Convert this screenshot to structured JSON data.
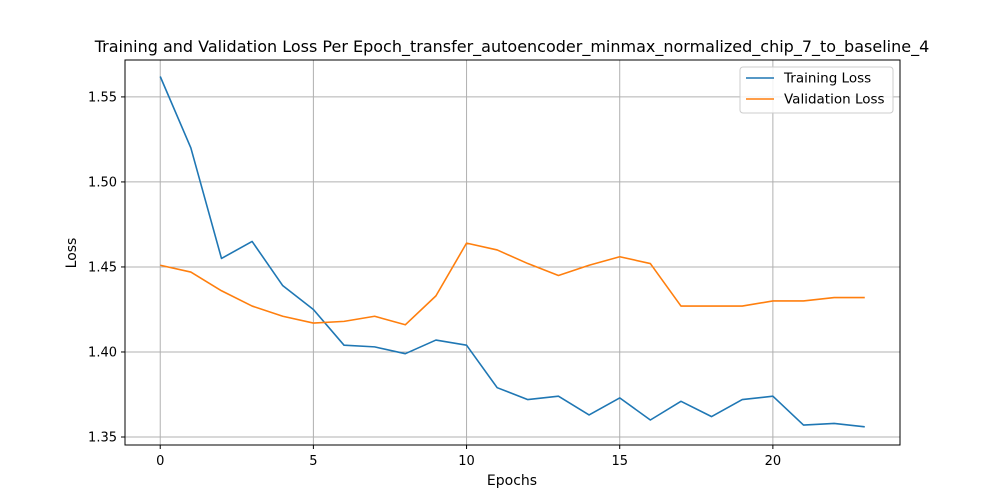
{
  "chart_data": {
    "type": "line",
    "title": "Training and Validation Loss Per Epoch_transfer_autoencoder_minmax_normalized_chip_7_to_baseline_4",
    "xlabel": "Epochs",
    "ylabel": "Loss",
    "xlim": [
      -1.15,
      24.15
    ],
    "ylim": [
      1.3453,
      1.5717
    ],
    "xticks": [
      0,
      5,
      10,
      15,
      20
    ],
    "yticks": [
      1.35,
      1.4,
      1.45,
      1.5,
      1.55
    ],
    "ytick_labels": [
      "1.35",
      "1.40",
      "1.45",
      "1.50",
      "1.55"
    ],
    "grid": true,
    "legend_position": "top-right",
    "x": [
      0,
      1,
      2,
      3,
      4,
      5,
      6,
      7,
      8,
      9,
      10,
      11,
      12,
      13,
      14,
      15,
      16,
      17,
      18,
      19,
      20,
      21,
      22,
      23
    ],
    "series": [
      {
        "name": "Training Loss",
        "color": "#1f77b4",
        "values": [
          1.562,
          1.52,
          1.455,
          1.465,
          1.439,
          1.425,
          1.404,
          1.403,
          1.399,
          1.407,
          1.404,
          1.379,
          1.372,
          1.374,
          1.363,
          1.373,
          1.36,
          1.371,
          1.362,
          1.372,
          1.374,
          1.357,
          1.358,
          1.356
        ]
      },
      {
        "name": "Validation Loss",
        "color": "#ff7f0e",
        "values": [
          1.451,
          1.447,
          1.436,
          1.427,
          1.421,
          1.417,
          1.418,
          1.421,
          1.416,
          1.433,
          1.464,
          1.46,
          1.452,
          1.445,
          1.451,
          1.456,
          1.452,
          1.427,
          1.427,
          1.427,
          1.43,
          1.43,
          1.432,
          1.432
        ]
      }
    ]
  }
}
